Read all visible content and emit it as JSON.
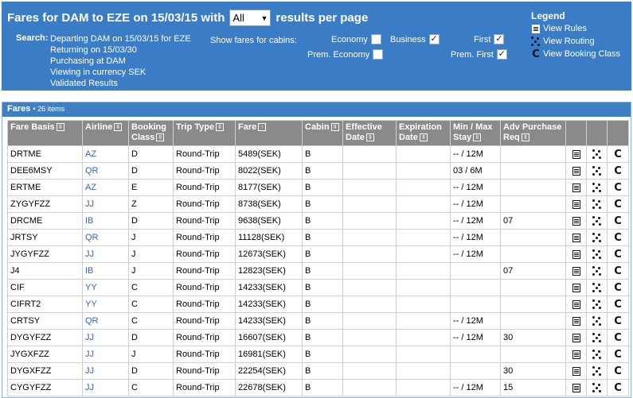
{
  "header": {
    "title_prefix": "Fares for DAM to EZE on 15/03/15 with",
    "per_page_value": "All",
    "title_suffix": "results per page",
    "search_label": "Search:",
    "search_lines": [
      "Departing DAM on 15/03/15 for EZE",
      "Returning on 15/03/30",
      "Purchasing at DAM",
      "Viewing in currency SEK",
      "Validated Results"
    ],
    "cabins_label": "Show fares for cabins:",
    "cabins": [
      {
        "label": "Economy",
        "checked": false
      },
      {
        "label": "Business",
        "checked": true
      },
      {
        "label": "First",
        "checked": true
      },
      {
        "label": "Prem. Economy",
        "checked": false
      },
      {
        "label": "Prem. First",
        "checked": true
      }
    ]
  },
  "legend": {
    "title": "Legend",
    "items": [
      {
        "label": "View Rules",
        "icon": "rules-icon"
      },
      {
        "label": "View Routing",
        "icon": "routing-icon"
      },
      {
        "label": "View Booking Class",
        "icon": "booking-class-icon"
      }
    ]
  },
  "grid": {
    "title": "Fares",
    "count": "• 26 items",
    "columns": [
      {
        "label": "Fare Basis",
        "sort": "⇳"
      },
      {
        "label": "Airline",
        "sort": "⇳"
      },
      {
        "label": "Booking Class",
        "sort": "⇳"
      },
      {
        "label": "Trip Type",
        "sort": "⇳"
      },
      {
        "label": "Fare",
        "sort": "↑"
      },
      {
        "label": "Cabin",
        "sort": "⇳"
      },
      {
        "label": "Effective Date",
        "sort": "⇳"
      },
      {
        "label": "Expiration Date",
        "sort": "⇳"
      },
      {
        "label": "Min / Max Stay",
        "sort": "⇳"
      },
      {
        "label": "Adv Purchase Req",
        "sort": "⇳"
      }
    ],
    "rows": [
      {
        "basis": "DRTME",
        "airline": "AZ",
        "booking": "D",
        "trip": "Round-Trip",
        "fare": "5489(SEK)",
        "cabin": "B",
        "eff": "",
        "exp": "",
        "stay": "-- / 12M",
        "adv": ""
      },
      {
        "basis": "DEE6MSY",
        "airline": "QR",
        "booking": "D",
        "trip": "Round-Trip",
        "fare": "8022(SEK)",
        "cabin": "B",
        "eff": "",
        "exp": "",
        "stay": "03 / 6M",
        "adv": ""
      },
      {
        "basis": "ERTME",
        "airline": "AZ",
        "booking": "E",
        "trip": "Round-Trip",
        "fare": "8177(SEK)",
        "cabin": "B",
        "eff": "",
        "exp": "",
        "stay": "-- / 12M",
        "adv": ""
      },
      {
        "basis": "ZYGYFZZ",
        "airline": "JJ",
        "booking": "Z",
        "trip": "Round-Trip",
        "fare": "8738(SEK)",
        "cabin": "B",
        "eff": "",
        "exp": "",
        "stay": "-- / 12M",
        "adv": ""
      },
      {
        "basis": "DRCME",
        "airline": "IB",
        "booking": "D",
        "trip": "Round-Trip",
        "fare": "9638(SEK)",
        "cabin": "B",
        "eff": "",
        "exp": "",
        "stay": "-- / 12M",
        "adv": "07"
      },
      {
        "basis": "JRTSY",
        "airline": "QR",
        "booking": "J",
        "trip": "Round-Trip",
        "fare": "11128(SEK)",
        "cabin": "B",
        "eff": "",
        "exp": "",
        "stay": "-- / 12M",
        "adv": ""
      },
      {
        "basis": "JYGYFZZ",
        "airline": "JJ",
        "booking": "J",
        "trip": "Round-Trip",
        "fare": "12673(SEK)",
        "cabin": "B",
        "eff": "",
        "exp": "",
        "stay": "-- / 12M",
        "adv": ""
      },
      {
        "basis": "J4",
        "airline": "IB",
        "booking": "J",
        "trip": "Round-Trip",
        "fare": "12823(SEK)",
        "cabin": "B",
        "eff": "",
        "exp": "",
        "stay": "",
        "adv": "07"
      },
      {
        "basis": "CIF",
        "airline": "YY",
        "booking": "C",
        "trip": "Round-Trip",
        "fare": "14233(SEK)",
        "cabin": "B",
        "eff": "",
        "exp": "",
        "stay": "",
        "adv": ""
      },
      {
        "basis": "CIFRT2",
        "airline": "YY",
        "booking": "C",
        "trip": "Round-Trip",
        "fare": "14233(SEK)",
        "cabin": "B",
        "eff": "",
        "exp": "",
        "stay": "",
        "adv": ""
      },
      {
        "basis": "CRTSY",
        "airline": "QR",
        "booking": "C",
        "trip": "Round-Trip",
        "fare": "14233(SEK)",
        "cabin": "B",
        "eff": "",
        "exp": "",
        "stay": "-- / 12M",
        "adv": ""
      },
      {
        "basis": "DYGYFZZ",
        "airline": "JJ",
        "booking": "D",
        "trip": "Round-Trip",
        "fare": "16607(SEK)",
        "cabin": "B",
        "eff": "",
        "exp": "",
        "stay": "-- / 12M",
        "adv": "30"
      },
      {
        "basis": "JYGXFZZ",
        "airline": "JJ",
        "booking": "J",
        "trip": "Round-Trip",
        "fare": "16981(SEK)",
        "cabin": "B",
        "eff": "",
        "exp": "",
        "stay": "",
        "adv": ""
      },
      {
        "basis": "DYGXFZZ",
        "airline": "JJ",
        "booking": "D",
        "trip": "Round-Trip",
        "fare": "22254(SEK)",
        "cabin": "B",
        "eff": "",
        "exp": "",
        "stay": "",
        "adv": "30"
      },
      {
        "basis": "CYGYFZZ",
        "airline": "JJ",
        "booking": "C",
        "trip": "Round-Trip",
        "fare": "22678(SEK)",
        "cabin": "B",
        "eff": "",
        "exp": "",
        "stay": "-- / 12M",
        "adv": "15"
      }
    ]
  }
}
